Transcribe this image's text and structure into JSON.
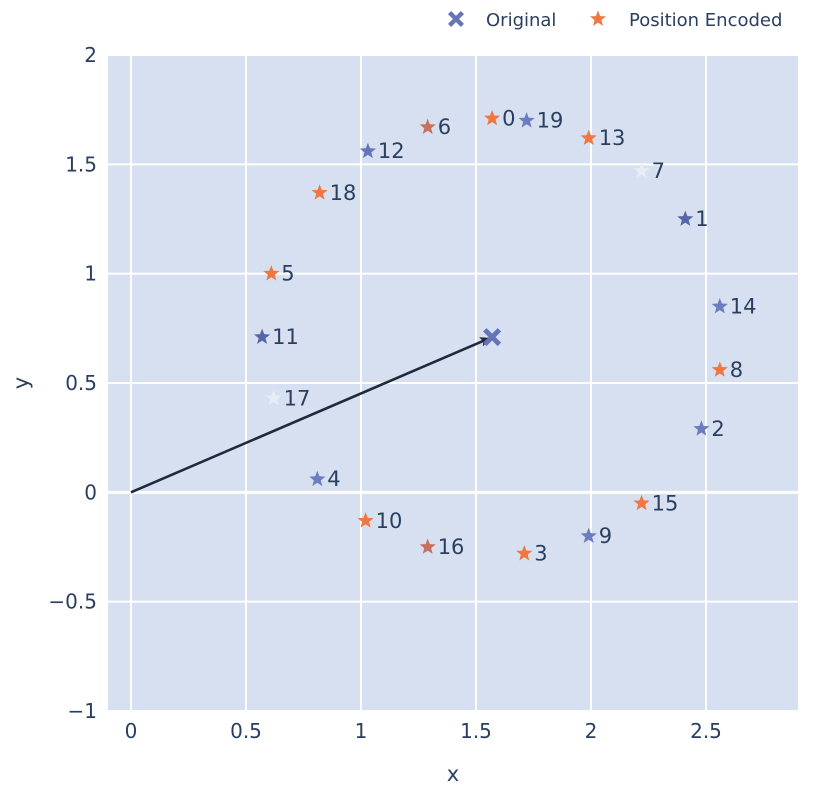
{
  "chart_data": {
    "type": "scatter",
    "xlabel": "x",
    "ylabel": "y",
    "xlim": [
      -0.1,
      2.9
    ],
    "ylim": [
      -1,
      2
    ],
    "x_ticks": [
      0,
      0.5,
      1,
      1.5,
      2,
      2.5
    ],
    "x_tick_labels": [
      "0",
      "0.5",
      "1",
      "1.5",
      "2",
      "2.5"
    ],
    "y_ticks": [
      -1,
      -0.5,
      0,
      0.5,
      1,
      1.5,
      2
    ],
    "y_tick_labels": [
      "−1",
      "−0.5",
      "0",
      "0.5",
      "1",
      "1.5",
      "2"
    ],
    "grid": true,
    "legend_position": "top-right",
    "legend": [
      {
        "name": "Original",
        "color": "#6474b8",
        "symbol": "x"
      },
      {
        "name": "Position Encoded",
        "color": "#f0773f",
        "symbol": "star"
      }
    ],
    "original": {
      "x": 1.57,
      "y": 0.71,
      "color": "#6474b8"
    },
    "arrow": {
      "from": [
        0,
        0
      ],
      "to": [
        1.57,
        0.71
      ],
      "color": "#1f2a3c"
    },
    "points": [
      {
        "label": "0",
        "x": 1.57,
        "y": 1.71,
        "color": "#f0773f"
      },
      {
        "label": "1",
        "x": 2.41,
        "y": 1.25,
        "color": "#5566a8"
      },
      {
        "label": "2",
        "x": 2.48,
        "y": 0.29,
        "color": "#6c7cc0"
      },
      {
        "label": "3",
        "x": 1.71,
        "y": -0.28,
        "color": "#f0773f"
      },
      {
        "label": "4",
        "x": 0.81,
        "y": 0.06,
        "color": "#6c7cc0"
      },
      {
        "label": "5",
        "x": 0.61,
        "y": 1.0,
        "color": "#f0773f"
      },
      {
        "label": "6",
        "x": 1.29,
        "y": 1.67,
        "color": "#c4715e"
      },
      {
        "label": "7",
        "x": 2.22,
        "y": 1.47,
        "color": "#e8ecf5"
      },
      {
        "label": "8",
        "x": 2.56,
        "y": 0.56,
        "color": "#f0773f"
      },
      {
        "label": "9",
        "x": 1.99,
        "y": -0.2,
        "color": "#6c7cc0"
      },
      {
        "label": "10",
        "x": 1.02,
        "y": -0.13,
        "color": "#f0773f"
      },
      {
        "label": "11",
        "x": 0.57,
        "y": 0.71,
        "color": "#5566a8"
      },
      {
        "label": "12",
        "x": 1.03,
        "y": 1.56,
        "color": "#6474b8"
      },
      {
        "label": "13",
        "x": 1.99,
        "y": 1.62,
        "color": "#f0773f"
      },
      {
        "label": "14",
        "x": 2.56,
        "y": 0.85,
        "color": "#6c7cc0"
      },
      {
        "label": "15",
        "x": 2.22,
        "y": -0.05,
        "color": "#f0773f"
      },
      {
        "label": "16",
        "x": 1.29,
        "y": -0.25,
        "color": "#c4715e"
      },
      {
        "label": "17",
        "x": 0.62,
        "y": 0.43,
        "color": "#e8ecf5"
      },
      {
        "label": "18",
        "x": 0.82,
        "y": 1.37,
        "color": "#f0773f"
      },
      {
        "label": "19",
        "x": 1.72,
        "y": 1.7,
        "color": "#6c7cc0"
      }
    ]
  }
}
